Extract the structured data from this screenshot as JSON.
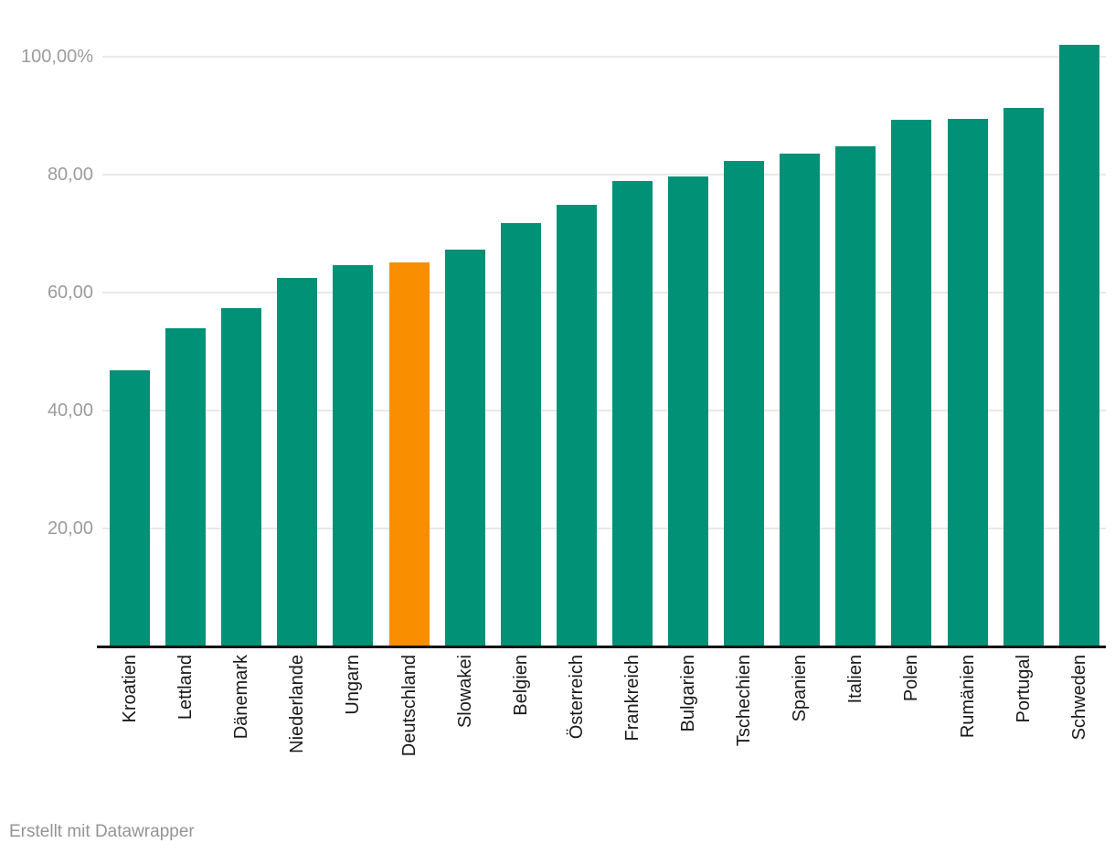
{
  "chart_data": {
    "type": "bar",
    "categories": [
      "Kroatien",
      "Lettland",
      "Dänemark",
      "Niederlande",
      "Ungarn",
      "Deutschland",
      "Slowakei",
      "Belgien",
      "Österreich",
      "Frankreich",
      "Bulgarien",
      "Tschechien",
      "Spanien",
      "Italien",
      "Polen",
      "Rumänien",
      "Portugal",
      "Schweden"
    ],
    "values": [
      46.8,
      53.9,
      57.3,
      62.4,
      64.6,
      65.0,
      67.3,
      71.8,
      74.8,
      78.9,
      79.7,
      82.2,
      83.5,
      84.8,
      89.2,
      89.4,
      91.2,
      102.0
    ],
    "unit": "%",
    "title": "",
    "xlabel": "",
    "ylabel": "",
    "ylim": [
      0,
      105
    ],
    "grid": true,
    "legend": false,
    "highlight_category": "Deutschland",
    "highlight_index": 5,
    "bar_color": "#009176",
    "highlight_color": "#f98e00",
    "y_axis": {
      "ticks": [
        {
          "value": 20,
          "label": "20,00"
        },
        {
          "value": 40,
          "label": "40,00"
        },
        {
          "value": 60,
          "label": "60,00"
        },
        {
          "value": 80,
          "label": "80,00"
        },
        {
          "value": 100,
          "label": "100,00%"
        }
      ]
    }
  },
  "footer": {
    "attribution_prefix": "Erstellt mit ",
    "attribution_link": "Datawrapper"
  },
  "colors": {
    "bar": "#009176",
    "highlight": "#f98e00",
    "gridline": "#e9e9e9",
    "axis_text": "#9c9c9c",
    "label_text": "#1a1a1a",
    "baseline": "#151515",
    "footer_text": "#949494"
  }
}
